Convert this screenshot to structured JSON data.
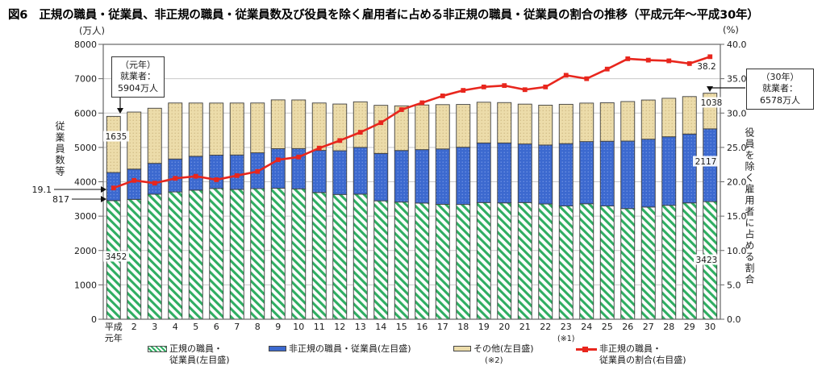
{
  "title": "図6　正規の職員・従業員、非正規の職員・従業員数及び役員を除く雇用者に占める非正規の職員・従業員の割合の推移（平成元年～平成30年）",
  "colors": {
    "regular_hatch": "#2fae62",
    "nonregular_fill": "#3c69cf",
    "nonregular_dot": "#7b9ce8",
    "other_fill": "#ecdcaa",
    "other_dot": "#c5ad74",
    "line": "#e8261d",
    "grid": "#c9c9c9",
    "frame": "#666666",
    "segment_border": "#3f3f3f",
    "text": "#1a1a1a"
  },
  "chart_data": {
    "type": "stacked-bar+line",
    "categories": [
      "平成元年",
      "2",
      "3",
      "4",
      "5",
      "6",
      "7",
      "8",
      "9",
      "10",
      "11",
      "12",
      "13",
      "14",
      "15",
      "16",
      "17",
      "18",
      "19",
      "20",
      "21",
      "22",
      "23",
      "24",
      "25",
      "26",
      "27",
      "28",
      "29",
      "30"
    ],
    "first_tick_lines": [
      "平成",
      "元年"
    ],
    "bar_series": [
      {
        "name": "正規の職員・従業員(左目盛)",
        "key": "regular",
        "values": [
          3452,
          3488,
          3639,
          3705,
          3756,
          3805,
          3779,
          3800,
          3812,
          3794,
          3688,
          3630,
          3640,
          3445,
          3410,
          3380,
          3345,
          3340,
          3395,
          3385,
          3395,
          3355,
          3295,
          3360,
          3295,
          3220,
          3265,
          3315,
          3385,
          3423
        ]
      },
      {
        "name": "非正規の職員・従業員(左目盛)",
        "key": "nonregular",
        "values": [
          817,
          881,
          897,
          958,
          986,
          971,
          1001,
          1043,
          1152,
          1173,
          1225,
          1273,
          1360,
          1380,
          1500,
          1555,
          1610,
          1665,
          1735,
          1745,
          1705,
          1715,
          1815,
          1810,
          1885,
          1965,
          1975,
          1995,
          2005,
          2117
        ]
      },
      {
        "name": "その他(左目盛)",
        "key": "other",
        "values": [
          1635,
          1660,
          1604,
          1630,
          1550,
          1515,
          1512,
          1450,
          1420,
          1415,
          1380,
          1360,
          1327,
          1400,
          1300,
          1300,
          1290,
          1245,
          1185,
          1175,
          1160,
          1160,
          1145,
          1120,
          1120,
          1150,
          1140,
          1120,
          1090,
          1038
        ]
      }
    ],
    "line_series": {
      "name": "非正規の職員・従業員の割合(右目盛)",
      "key": "ratio",
      "axis": "right",
      "values": [
        19.1,
        20.2,
        19.8,
        20.5,
        20.8,
        20.3,
        20.9,
        21.5,
        23.2,
        23.6,
        24.9,
        26.0,
        27.2,
        28.6,
        30.5,
        31.5,
        32.5,
        33.3,
        33.8,
        34.0,
        33.4,
        33.8,
        35.5,
        35.0,
        36.4,
        37.9,
        37.7,
        37.6,
        37.2,
        38.2
      ]
    },
    "left_axis": {
      "unit": "(万人)",
      "label": "従業員数等",
      "min": 0,
      "max": 8000,
      "tick_step": 1000,
      "tick_labels": [
        "0",
        "1000",
        "2000",
        "3000",
        "4000",
        "5000",
        "6000",
        "7000",
        "8000"
      ]
    },
    "right_axis": {
      "unit": "(%)",
      "label": "役員を除く雇用者に占める割合",
      "min": 0,
      "max": 40,
      "tick_step": 5,
      "tick_labels": [
        "0.0",
        "5.0",
        "10.0",
        "15.0",
        "20.0",
        "25.0",
        "30.0",
        "35.0",
        "40.0"
      ]
    },
    "grid": true,
    "legend_position": "bottom"
  },
  "annotations": {
    "callouts": {
      "first": {
        "lines": [
          "（元年）",
          "就業者：",
          "5904万人"
        ]
      },
      "last": {
        "lines": [
          "（30年）",
          "就業者：",
          "6578万人"
        ]
      }
    },
    "point_labels": {
      "first_other": "1635",
      "first_regular": "3452",
      "first_nonregular": "817",
      "first_ratio": "19.1",
      "last_other": "1038",
      "last_nonregular": "2117",
      "last_regular": "3423",
      "last_ratio": "38.2"
    },
    "footnote_year23": "(※1)",
    "footnote_other": "(※2)"
  },
  "legend": {
    "items": [
      {
        "key": "regular",
        "line1": "正規の職員・",
        "line2": "従業員(左目盛)",
        "note": ""
      },
      {
        "key": "nonregular",
        "line1": "非正規の職員・従業員(左目盛)",
        "line2": "",
        "note": ""
      },
      {
        "key": "other",
        "line1": "その他(左目盛)",
        "line2": "",
        "note": "(※2)"
      },
      {
        "key": "ratio",
        "line1": "非正規の職員・",
        "line2": "従業員の割合(右目盛)",
        "note": ""
      }
    ]
  }
}
